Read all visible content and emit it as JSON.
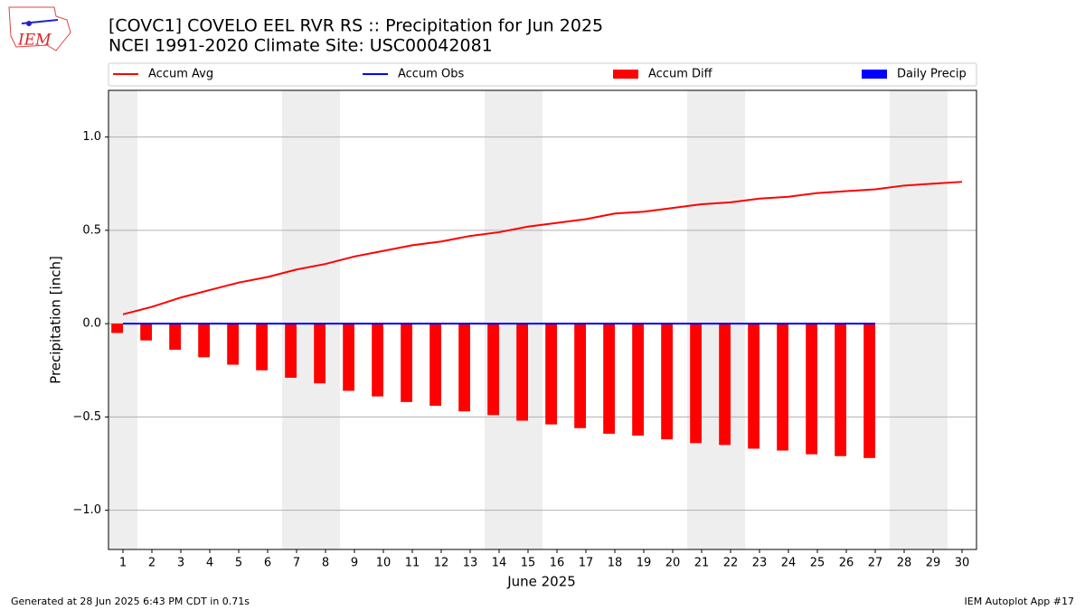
{
  "logo": "IEM",
  "chart_data": {
    "type": "bar",
    "title": "[COVC1] COVELO EEL RVR RS :: Precipitation for Jun 2025",
    "subtitle": "NCEI 1991-2020 Climate Site: USC00042081",
    "ylabel": "Precipitation [inch]",
    "xlabel": "June 2025",
    "x": [
      1,
      2,
      3,
      4,
      5,
      6,
      7,
      8,
      9,
      10,
      11,
      12,
      13,
      14,
      15,
      16,
      17,
      18,
      19,
      20,
      21,
      22,
      23,
      24,
      25,
      26,
      27,
      28,
      29,
      30
    ],
    "xlim": [
      0.5,
      30.5
    ],
    "xticks": [
      1,
      2,
      3,
      4,
      5,
      6,
      7,
      8,
      9,
      10,
      11,
      12,
      13,
      14,
      15,
      16,
      17,
      18,
      19,
      20,
      21,
      22,
      23,
      24,
      25,
      26,
      27,
      28,
      29,
      30
    ],
    "ylim": [
      -1.21,
      1.25
    ],
    "yticks": [
      {
        "value": -1,
        "label": "−1.0"
      },
      {
        "value": -0.5,
        "label": "−0.5"
      },
      {
        "value": 0,
        "label": "0.0"
      },
      {
        "value": 0.5,
        "label": "0.5"
      },
      {
        "value": 1,
        "label": "1.0"
      }
    ],
    "grid": true,
    "shaded_days": [
      1,
      7,
      8,
      14,
      15,
      21,
      22,
      28,
      29
    ],
    "shade_color": "#eeeeee",
    "series": [
      {
        "name": "Accum Avg",
        "type": "line",
        "color": "#ff0000",
        "values": [
          0.05,
          0.09,
          0.14,
          0.18,
          0.22,
          0.25,
          0.29,
          0.32,
          0.36,
          0.39,
          0.42,
          0.44,
          0.47,
          0.49,
          0.52,
          0.54,
          0.56,
          0.59,
          0.6,
          0.62,
          0.64,
          0.65,
          0.67,
          0.68,
          0.7,
          0.71,
          0.72,
          0.74,
          0.75,
          0.76
        ]
      },
      {
        "name": "Accum Obs",
        "type": "line",
        "color": "#0000ff",
        "values": [
          0,
          0,
          0,
          0,
          0,
          0,
          0,
          0,
          0,
          0,
          0,
          0,
          0,
          0,
          0,
          0,
          0,
          0,
          0,
          0,
          0,
          0,
          0,
          0,
          0,
          0,
          0,
          null,
          null,
          null
        ]
      },
      {
        "name": "Accum Diff",
        "type": "bar",
        "color": "#ff0000",
        "values": [
          -0.05,
          -0.09,
          -0.14,
          -0.18,
          -0.22,
          -0.25,
          -0.29,
          -0.32,
          -0.36,
          -0.39,
          -0.42,
          -0.44,
          -0.47,
          -0.49,
          -0.52,
          -0.54,
          -0.56,
          -0.59,
          -0.6,
          -0.62,
          -0.64,
          -0.65,
          -0.67,
          -0.68,
          -0.7,
          -0.71,
          -0.72,
          null,
          null,
          null
        ]
      },
      {
        "name": "Daily Precip",
        "type": "bar",
        "color": "#0000ff",
        "values": [
          0,
          0,
          0,
          0,
          0,
          0,
          0,
          0,
          0,
          0,
          0,
          0,
          0,
          0,
          0,
          0,
          0,
          0,
          0,
          0,
          0,
          0,
          0,
          0,
          0,
          0,
          0,
          null,
          null,
          null
        ]
      }
    ],
    "footer_left": "Generated at 28 Jun 2025 6:43 PM CDT in 0.71s",
    "footer_right": "IEM Autoplot App #17"
  }
}
